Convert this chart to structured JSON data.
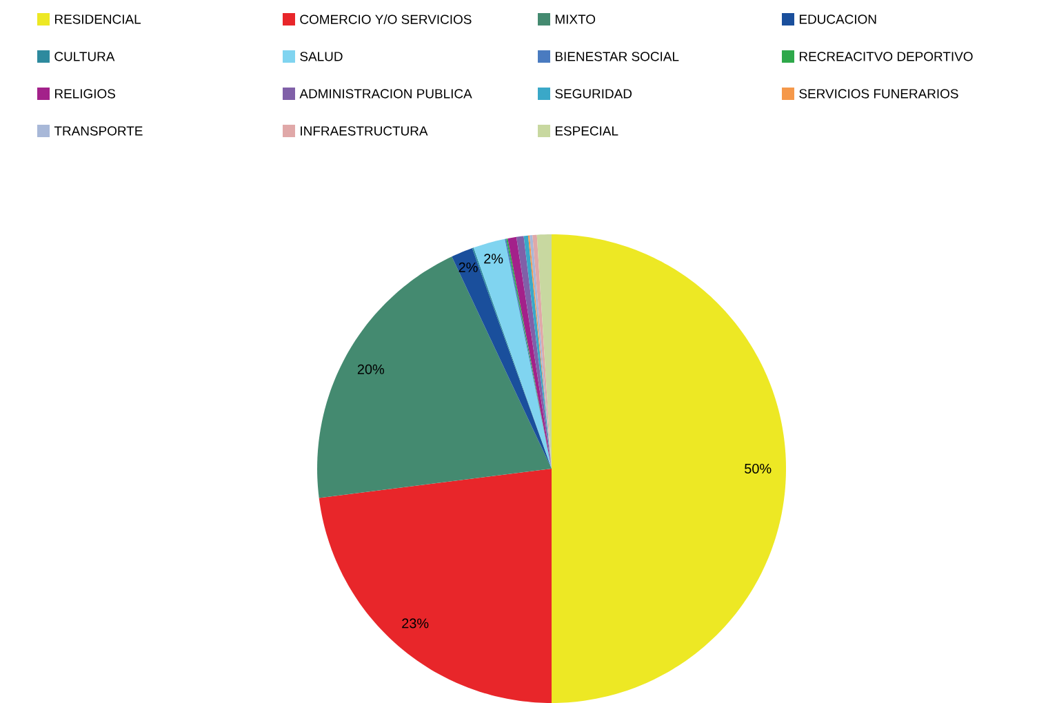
{
  "chart_data": {
    "type": "pie",
    "legend": "top",
    "categories": [
      "RESIDENCIAL",
      "COMERCIO Y/O SERVICIOS",
      "MIXTO",
      "EDUCACION",
      "CULTURA",
      "SALUD",
      "BIENESTAR SOCIAL",
      "RECREACITVO DEPORTIVO",
      "RELIGIOS",
      "ADMINISTRACION PUBLICA",
      "SEGURIDAD",
      "SERVICIOS FUNERARIOS",
      "TRANSPORTE",
      "INFRAESTRUCTURA",
      "ESPECIAL"
    ],
    "values": [
      50,
      23,
      20,
      1.5,
      0.1,
      2.2,
      0.1,
      0.1,
      0.6,
      0.5,
      0.3,
      0.1,
      0.2,
      0.3,
      1.0
    ],
    "value_labels": [
      "50%",
      "23%",
      "20%",
      "2%",
      null,
      "2%",
      null,
      null,
      null,
      null,
      null,
      null,
      null,
      null,
      null
    ],
    "colors": [
      "#ede824",
      "#e8262a",
      "#448a70",
      "#1a4f9c",
      "#2e8a9e",
      "#80d4f0",
      "#4a7bc0",
      "#2ea84a",
      "#a3218a",
      "#8060a8",
      "#3aa8c8",
      "#f5984a",
      "#a8b8d8",
      "#e0a8a8",
      "#c8d8a0"
    ]
  }
}
